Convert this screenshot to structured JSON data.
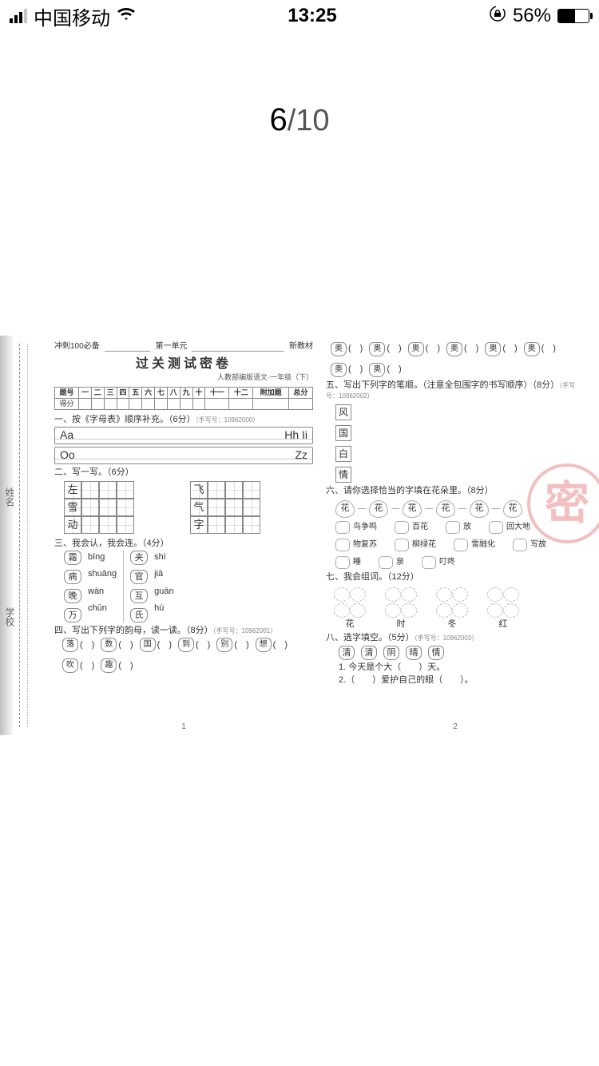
{
  "status": {
    "carrier": "中国移动",
    "time": "13:25",
    "battery_pct": "56%",
    "battery_fill_pct": 56
  },
  "page_indicator": {
    "current": "6",
    "sep": "/",
    "total": "10"
  },
  "gutter_labels": [
    "姓名",
    "学校"
  ],
  "page1": {
    "hdr_left": "冲刺100必备",
    "hdr_mid": "第一单元",
    "hdr_right": "新教材",
    "title": "过关测试密卷",
    "subtitle": "人教部编版语文·一年级（下）",
    "score_headers": [
      "题号",
      "一",
      "二",
      "三",
      "四",
      "五",
      "六",
      "七",
      "八",
      "九",
      "十",
      "十一",
      "十二",
      "附加题",
      "总分"
    ],
    "score_row_label": "得分",
    "q1": "一、按《字母表》顺序补充。（6分）",
    "q1_code": "（手写号：10962000）",
    "ruled": [
      [
        "Aa",
        "Hh  Ii"
      ],
      [
        "Oo",
        "Zz"
      ]
    ],
    "q2": "二、写一写。（6分）",
    "grid_left": [
      "左",
      "雪",
      "动"
    ],
    "grid_right": [
      "飞",
      "气",
      "字"
    ],
    "q3": "三、我会认，我会连。（4分）",
    "match_left_chars": [
      "霜",
      "病",
      "晚",
      "万"
    ],
    "match_left_pin": [
      "bīng",
      "shuāng",
      "wàn",
      "chūn"
    ],
    "match_right_chars": [
      "夹",
      "官",
      "互",
      "氏"
    ],
    "match_right_pin": [
      "shì",
      "jiā",
      "guān",
      "hù"
    ],
    "q4": "四、写出下列字的韵母，读一读。（8分）",
    "q4_code": "（手写号：10962001）",
    "q4_chars": [
      "落",
      "数",
      "国",
      "到",
      "别",
      "想",
      "吹",
      "趣"
    ],
    "page_number": "1"
  },
  "page2": {
    "top_chars": [
      "奥",
      "奥",
      "奥",
      "奥",
      "奥",
      "奥",
      "奥",
      "奥"
    ],
    "q5": "五、写出下列字的笔顺。（注意全包围字的书写顺序）（8分）",
    "q5_code": "（手写号：10962002）",
    "q5_chars": [
      "风",
      "国",
      "白",
      "情"
    ],
    "q6": "六、请你选择恰当的字填在花朵里。（8分）",
    "q6_flowers": [
      "花",
      "花",
      "花",
      "花",
      "花",
      "花"
    ],
    "q6_opts": [
      [
        "鸟争鸣",
        "百花",
        "放",
        "回大地"
      ],
      [
        "物复苏",
        "柳绿花",
        "雪融化"
      ],
      [
        "写故",
        "睡",
        "泉",
        "叮咚"
      ]
    ],
    "q7": "七、我会组词。（12分）",
    "q7_labels": [
      "花",
      "时",
      "冬",
      "红"
    ],
    "q8": "八、选字填空。（5分）",
    "q8_code": "（手写号：10962003）",
    "q8_opts": [
      "清",
      "清",
      "阴",
      "晴",
      "情"
    ],
    "q8_lines": [
      "1. 今天是个大（　　）天。",
      "2.（　　）爱护自己的眼（　　）。"
    ],
    "page_number": "2",
    "watermark": "密"
  }
}
